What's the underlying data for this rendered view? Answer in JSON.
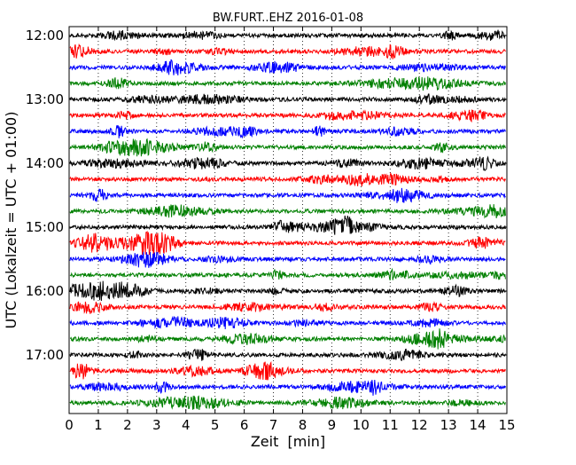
{
  "chart_data": {
    "type": "line",
    "title": "BW.FURT..EHZ 2016-01-08",
    "xlabel": "Zeit  [min]",
    "ylabel": "UTC (Lokalzeit = UTC + 01:00)",
    "xlim": [
      0,
      15
    ],
    "x_ticks": [
      0,
      1,
      2,
      3,
      4,
      5,
      6,
      7,
      8,
      9,
      10,
      11,
      12,
      13,
      14,
      15
    ],
    "y_tick_labels": [
      "12:00",
      "13:00",
      "14:00",
      "15:00",
      "16:00",
      "17:00"
    ],
    "grid": "vertical-dotted",
    "trace_colors": [
      "#000000",
      "#ff0000",
      "#0000ff",
      "#008000"
    ],
    "series": [
      {
        "start": "12:00",
        "color": "#000000"
      },
      {
        "start": "12:15",
        "color": "#ff0000"
      },
      {
        "start": "12:30",
        "color": "#0000ff"
      },
      {
        "start": "12:45",
        "color": "#008000"
      },
      {
        "start": "13:00",
        "color": "#000000"
      },
      {
        "start": "13:15",
        "color": "#ff0000"
      },
      {
        "start": "13:30",
        "color": "#0000ff"
      },
      {
        "start": "13:45",
        "color": "#008000"
      },
      {
        "start": "14:00",
        "color": "#000000"
      },
      {
        "start": "14:15",
        "color": "#ff0000"
      },
      {
        "start": "14:30",
        "color": "#0000ff"
      },
      {
        "start": "14:45",
        "color": "#008000"
      },
      {
        "start": "15:00",
        "color": "#000000"
      },
      {
        "start": "15:15",
        "color": "#ff0000"
      },
      {
        "start": "15:30",
        "color": "#0000ff"
      },
      {
        "start": "15:45",
        "color": "#008000"
      },
      {
        "start": "16:00",
        "color": "#000000"
      },
      {
        "start": "16:15",
        "color": "#ff0000"
      },
      {
        "start": "16:30",
        "color": "#0000ff"
      },
      {
        "start": "16:45",
        "color": "#008000"
      },
      {
        "start": "17:00",
        "color": "#000000"
      },
      {
        "start": "17:15",
        "color": "#ff0000"
      },
      {
        "start": "17:30",
        "color": "#0000ff"
      },
      {
        "start": "17:45",
        "color": "#008000"
      }
    ]
  }
}
